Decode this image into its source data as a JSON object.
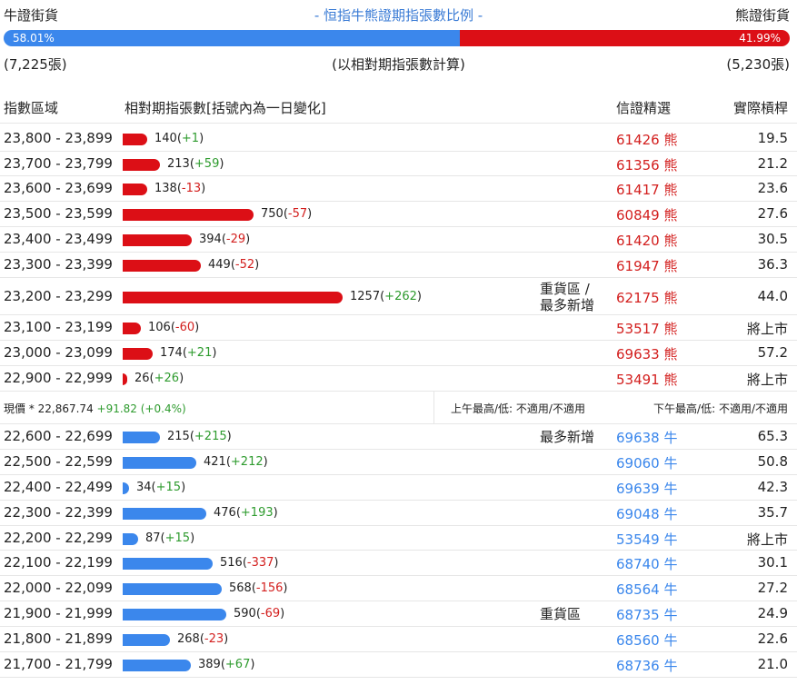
{
  "header": {
    "bull_label": "牛證街貨",
    "title": "- 恒指牛熊證期指張數比例 -",
    "bear_label": "熊證街貨"
  },
  "ratio": {
    "bull_pct": "58.01%",
    "bear_pct": "41.99%",
    "bull_fraction": 0.5801
  },
  "counts": {
    "bull": "(7,225張)",
    "note": "(以相對期指張數計算)",
    "bear": "(5,230張)"
  },
  "columns": {
    "range": "指數區域",
    "volume": "相對期指張數[括號內為一日變化]",
    "pick": "信證精選",
    "leverage": "實際槓桿"
  },
  "bear_rows": [
    {
      "range": "23,800 - 23,899",
      "count": "140",
      "change": "+1",
      "value": 140,
      "note": "",
      "code": "61426 熊",
      "lev": "19.5"
    },
    {
      "range": "23,700 - 23,799",
      "count": "213",
      "change": "+59",
      "value": 213,
      "note": "",
      "code": "61356 熊",
      "lev": "21.2"
    },
    {
      "range": "23,600 - 23,699",
      "count": "138",
      "change": "-13",
      "value": 138,
      "note": "",
      "code": "61417 熊",
      "lev": "23.6"
    },
    {
      "range": "23,500 - 23,599",
      "count": "750",
      "change": "-57",
      "value": 750,
      "note": "",
      "code": "60849 熊",
      "lev": "27.6"
    },
    {
      "range": "23,400 - 23,499",
      "count": "394",
      "change": "-29",
      "value": 394,
      "note": "",
      "code": "61420 熊",
      "lev": "30.5"
    },
    {
      "range": "23,300 - 23,399",
      "count": "449",
      "change": "-52",
      "value": 449,
      "note": "",
      "code": "61947 熊",
      "lev": "36.3"
    },
    {
      "range": "23,200 - 23,299",
      "count": "1257",
      "change": "+262",
      "value": 1257,
      "note": "重貨區 /",
      "note2": "最多新增",
      "code": "62175 熊",
      "lev": "44.0"
    },
    {
      "range": "23,100 - 23,199",
      "count": "106",
      "change": "-60",
      "value": 106,
      "note": "",
      "code": "53517 熊",
      "lev": "將上市"
    },
    {
      "range": "23,000 - 23,099",
      "count": "174",
      "change": "+21",
      "value": 174,
      "note": "",
      "code": "69633 熊",
      "lev": "57.2"
    },
    {
      "range": "22,900 - 22,999",
      "count": "26",
      "change": "+26",
      "value": 26,
      "note": "",
      "code": "53491 熊",
      "lev": "將上市"
    }
  ],
  "spot": {
    "price": "現價 *  22,867.74",
    "change": "+91.82 (+0.4%)",
    "am": "上午最高/低: 不適用/不適用",
    "pm": "下午最高/低: 不適用/不適用"
  },
  "bull_rows": [
    {
      "range": "22,600 - 22,699",
      "count": "215",
      "change": "+215",
      "value": 215,
      "note": "最多新增",
      "code": "69638 牛",
      "lev": "65.3"
    },
    {
      "range": "22,500 - 22,599",
      "count": "421",
      "change": "+212",
      "value": 421,
      "note": "",
      "code": "69060 牛",
      "lev": "50.8"
    },
    {
      "range": "22,400 - 22,499",
      "count": "34",
      "change": "+15",
      "value": 34,
      "note": "",
      "code": "69639 牛",
      "lev": "42.3"
    },
    {
      "range": "22,300 - 22,399",
      "count": "476",
      "change": "+193",
      "value": 476,
      "note": "",
      "code": "69048 牛",
      "lev": "35.7"
    },
    {
      "range": "22,200 - 22,299",
      "count": "87",
      "change": "+15",
      "value": 87,
      "note": "",
      "code": "53549 牛",
      "lev": "將上市"
    },
    {
      "range": "22,100 - 22,199",
      "count": "516",
      "change": "-337",
      "value": 516,
      "note": "",
      "code": "68740 牛",
      "lev": "30.1"
    },
    {
      "range": "22,000 - 22,099",
      "count": "568",
      "change": "-156",
      "value": 568,
      "note": "",
      "code": "68564 牛",
      "lev": "27.2"
    },
    {
      "range": "21,900 - 21,999",
      "count": "590",
      "change": "-69",
      "value": 590,
      "note": "重貨區",
      "code": "68735 牛",
      "lev": "24.9"
    },
    {
      "range": "21,800 - 21,899",
      "count": "268",
      "change": "-23",
      "value": 268,
      "note": "",
      "code": "68560 牛",
      "lev": "22.6"
    },
    {
      "range": "21,700 - 21,799",
      "count": "389",
      "change": "+67",
      "value": 389,
      "note": "",
      "code": "68736 牛",
      "lev": "21.0"
    }
  ],
  "colors": {
    "bull": "#3b87ec",
    "bear": "#dc0f16",
    "pos": "#2e9b2e",
    "neg": "#d3201f"
  }
}
